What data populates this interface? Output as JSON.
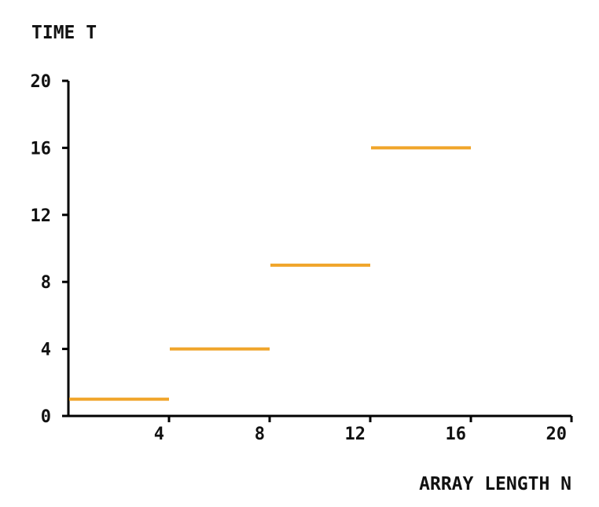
{
  "chart_data": {
    "type": "line",
    "title": "",
    "xlabel": "ARRAY LENGTH N",
    "ylabel": "TIME T",
    "xlim": [
      0,
      20
    ],
    "ylim": [
      0,
      20
    ],
    "x_ticks": [
      4,
      8,
      12,
      16,
      20
    ],
    "y_ticks": [
      0,
      4,
      8,
      12,
      16,
      20
    ],
    "x_tick_labels": [
      "4",
      "8",
      "12",
      "16",
      "20"
    ],
    "y_tick_labels": [
      "0",
      "4",
      "8",
      "12",
      "16",
      "20"
    ],
    "grid": false,
    "series": [
      {
        "color": "#f0a52a",
        "segments": [
          {
            "x0": 0,
            "x1": 4,
            "y": 1
          },
          {
            "x0": 4,
            "x1": 8,
            "y": 4
          },
          {
            "x0": 8,
            "x1": 12,
            "y": 9
          },
          {
            "x0": 12,
            "x1": 16,
            "y": 16
          }
        ]
      }
    ]
  }
}
